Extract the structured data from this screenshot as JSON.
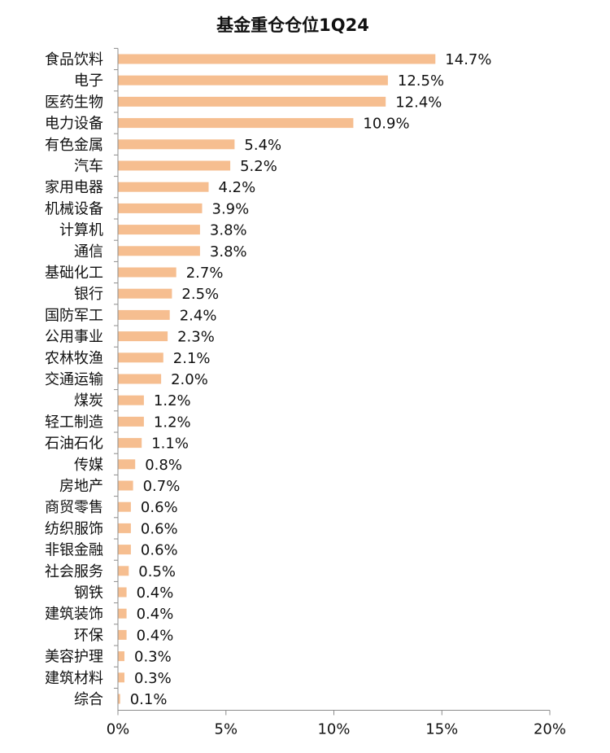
{
  "chart_data": {
    "type": "bar",
    "orientation": "horizontal",
    "title": "基金重仓仓位1Q24",
    "categories": [
      "食品饮料",
      "电子",
      "医药生物",
      "电力设备",
      "有色金属",
      "汽车",
      "家用电器",
      "机械设备",
      "计算机",
      "通信",
      "基础化工",
      "银行",
      "国防军工",
      "公用事业",
      "农林牧渔",
      "交通运输",
      "煤炭",
      "轻工制造",
      "石油石化",
      "传媒",
      "房地产",
      "商贸零售",
      "纺织服饰",
      "非银金融",
      "社会服务",
      "钢铁",
      "建筑装饰",
      "环保",
      "美容护理",
      "建筑材料",
      "综合"
    ],
    "values": [
      14.7,
      12.5,
      12.4,
      10.9,
      5.4,
      5.2,
      4.2,
      3.9,
      3.8,
      3.8,
      2.7,
      2.5,
      2.4,
      2.3,
      2.1,
      2.0,
      1.2,
      1.2,
      1.1,
      0.8,
      0.7,
      0.6,
      0.6,
      0.6,
      0.5,
      0.4,
      0.4,
      0.4,
      0.3,
      0.3,
      0.1
    ],
    "value_labels": [
      "14.7%",
      "12.5%",
      "12.4%",
      "10.9%",
      "5.4%",
      "5.2%",
      "4.2%",
      "3.9%",
      "3.8%",
      "3.8%",
      "2.7%",
      "2.5%",
      "2.4%",
      "2.3%",
      "2.1%",
      "2.0%",
      "1.2%",
      "1.2%",
      "1.1%",
      "0.8%",
      "0.7%",
      "0.6%",
      "0.6%",
      "0.6%",
      "0.5%",
      "0.4%",
      "0.4%",
      "0.4%",
      "0.3%",
      "0.3%",
      "0.1%"
    ],
    "xlim": [
      0,
      20
    ],
    "xticks": [
      0,
      5,
      10,
      15,
      20
    ],
    "xtick_labels": [
      "0%",
      "5%",
      "10%",
      "15%",
      "20%"
    ],
    "xlabel": "",
    "ylabel": "",
    "grid": false,
    "legend": "none",
    "bar_color": "#F6BE90",
    "axis_color": "#8c8c8c"
  }
}
